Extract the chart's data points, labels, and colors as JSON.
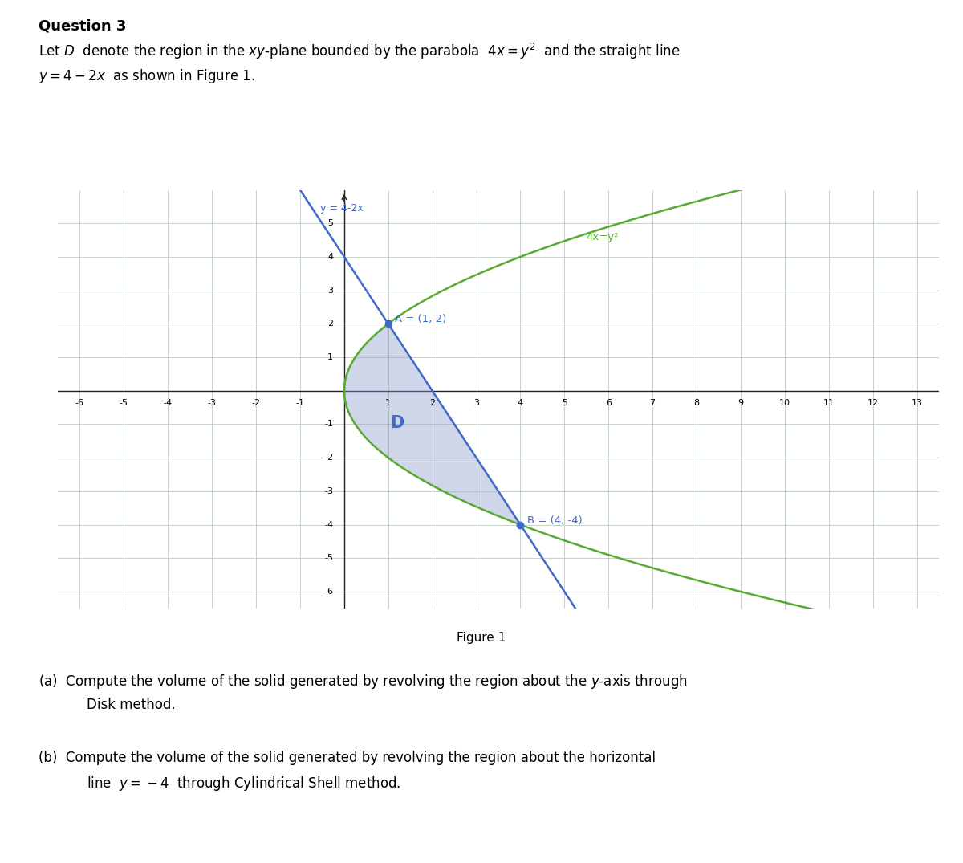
{
  "title": "Question 3",
  "intro_line1": "Let $D$  denote the region in the $xy$-plane bounded by the parabola  $4x = y^2$  and the straight line",
  "intro_line2": "$y = 4-2x$  as shown in Figure 1.",
  "figure_caption": "Figure 1",
  "point_A": [
    1,
    2
  ],
  "point_B": [
    4,
    -4
  ],
  "label_A": "A = (1, 2)",
  "label_B": "B = (4, -4)",
  "label_line": "y = 4-2x",
  "label_parabola": "4x=y²",
  "region_label": "D",
  "x_min": -6.5,
  "x_max": 13.5,
  "y_min": -6.5,
  "y_max": 6.0,
  "x_ticks": [
    -6,
    -5,
    -4,
    -3,
    -2,
    -1,
    1,
    2,
    3,
    4,
    5,
    6,
    7,
    8,
    9,
    10,
    11,
    12,
    13
  ],
  "y_ticks": [
    -6,
    -5,
    -4,
    -3,
    -2,
    -1,
    1,
    2,
    3,
    4,
    5
  ],
  "line_color": "#4169C8",
  "parabola_color": "#5AAA32",
  "region_fill_color": "#8899CC",
  "region_fill_alpha": 0.4,
  "grid_color": "#BBCCBB",
  "axis_color": "#222222",
  "text_color_line": "#4169C8",
  "text_color_parabola": "#5AAA32",
  "fig_width": 12.0,
  "fig_height": 10.75
}
